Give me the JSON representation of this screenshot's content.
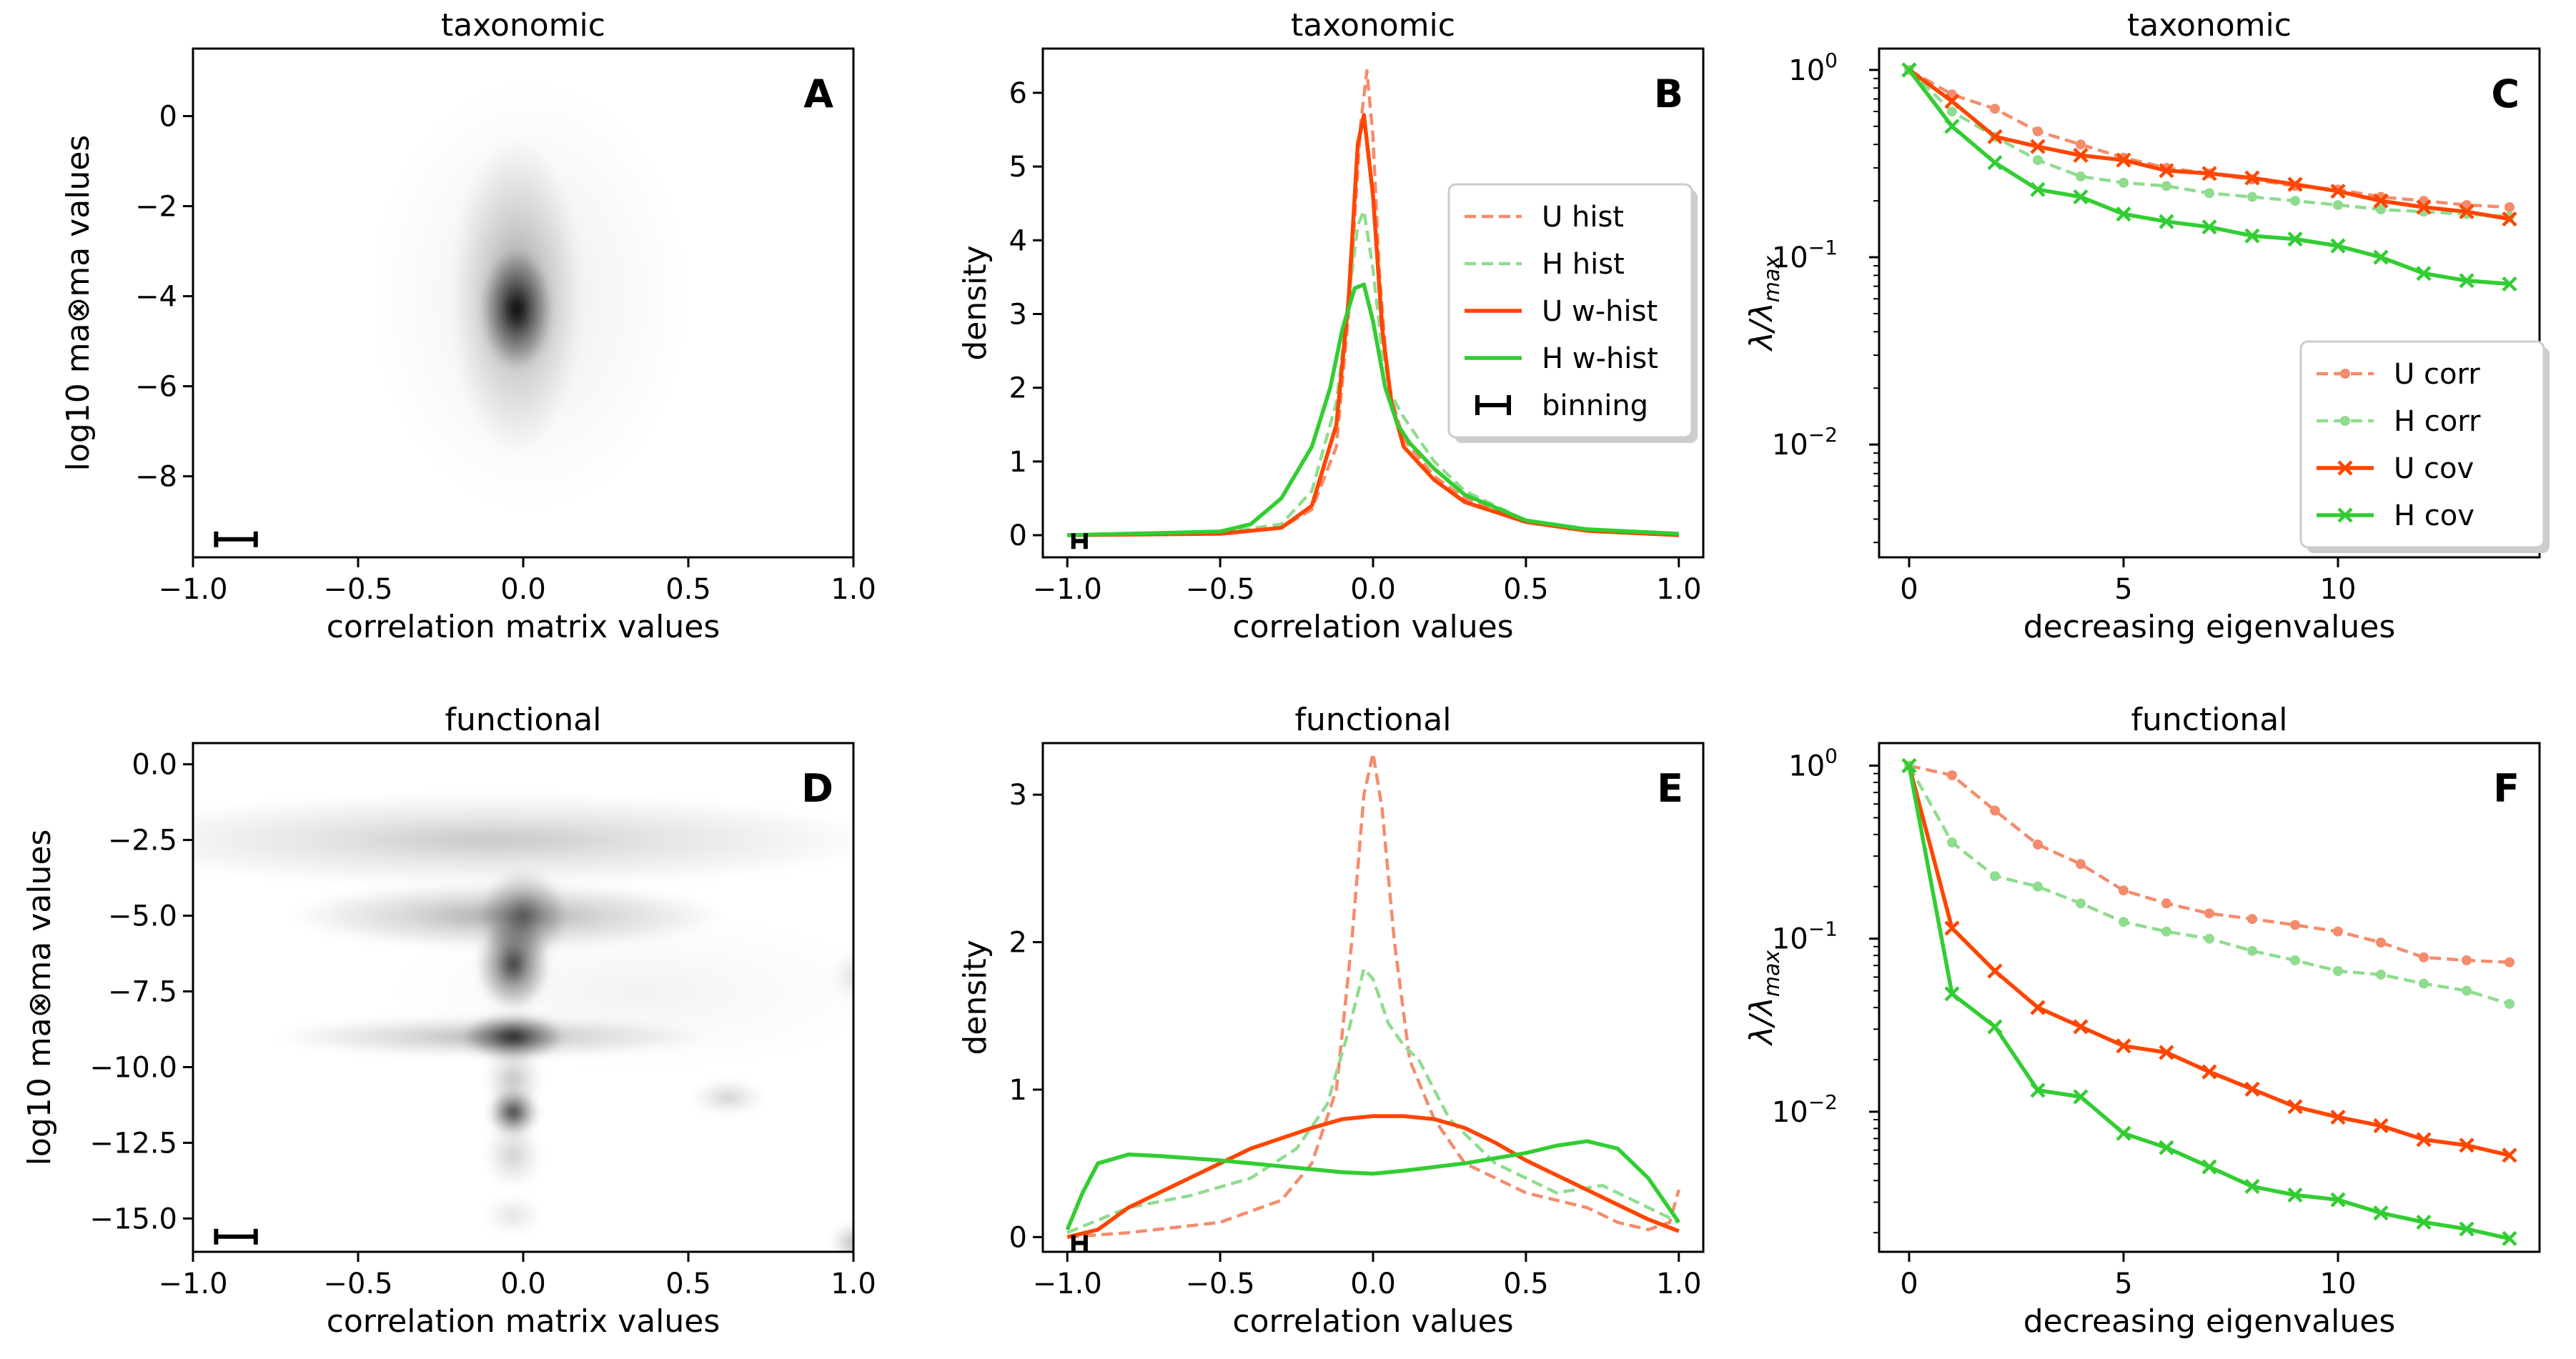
{
  "colors": {
    "U": "#ff4500",
    "H": "#32cd32",
    "U_light": "#f48c6c",
    "H_light": "#8fdc8f",
    "axis": "#000000"
  },
  "chart_data": [
    {
      "id": "A",
      "type": "heatmap",
      "letter": "A",
      "title": "taxonomic",
      "xlabel": "correlation matrix values",
      "ylabel": "log10 ma⊗ma values",
      "xlim": [
        -1.0,
        1.0
      ],
      "ylim": [
        -9.8,
        1.5
      ],
      "xticks": [
        -1.0,
        -0.5,
        0.0,
        0.5,
        1.0
      ],
      "xticklabels": [
        "−1.0",
        "−0.5",
        "0.0",
        "0.5",
        "1.0"
      ],
      "yticks": [
        -8,
        -6,
        -4,
        -2,
        0
      ],
      "yticklabels": [
        "−8",
        "−6",
        "−4",
        "−2",
        "0"
      ],
      "blobs": [
        {
          "x": -0.02,
          "y": -4.3,
          "sx": 0.05,
          "sy": 0.6,
          "w": 1.0
        },
        {
          "x": -0.02,
          "y": -4.0,
          "sx": 0.09,
          "sy": 1.6,
          "w": 0.35
        },
        {
          "x": 0.02,
          "y": -4.0,
          "sx": 0.22,
          "sy": 2.2,
          "w": 0.08
        }
      ],
      "binning": {
        "x": -0.87,
        "y": -9.4,
        "halfwidth": 0.06
      }
    },
    {
      "id": "B",
      "type": "line",
      "letter": "B",
      "title": "taxonomic",
      "xlabel": "correlation values",
      "ylabel": "density",
      "xlim": [
        -1.08,
        1.08
      ],
      "ylim": [
        -0.3,
        6.6
      ],
      "xticks": [
        -1.0,
        -0.5,
        0.0,
        0.5,
        1.0
      ],
      "xticklabels": [
        "−1.0",
        "−0.5",
        "0.0",
        "0.5",
        "1.0"
      ],
      "yticks": [
        0,
        1,
        2,
        3,
        4,
        5,
        6
      ],
      "yticklabels": [
        "0",
        "1",
        "2",
        "3",
        "4",
        "5",
        "6"
      ],
      "series": [
        {
          "name": "U hist",
          "color": "U_light",
          "style": "dashed",
          "x": [
            -1.0,
            -0.5,
            -0.3,
            -0.2,
            -0.12,
            -0.08,
            -0.04,
            -0.02,
            0.0,
            0.02,
            0.05,
            0.1,
            0.2,
            0.3,
            0.5,
            0.7,
            1.0
          ],
          "y": [
            0,
            0.02,
            0.1,
            0.35,
            1.2,
            3.0,
            5.6,
            6.3,
            5.4,
            3.6,
            2.0,
            1.3,
            0.8,
            0.5,
            0.2,
            0.06,
            0
          ]
        },
        {
          "name": "H hist",
          "color": "H_light",
          "style": "dashed",
          "x": [
            -1.0,
            -0.5,
            -0.3,
            -0.2,
            -0.12,
            -0.08,
            -0.05,
            -0.03,
            0.0,
            0.03,
            0.06,
            0.1,
            0.2,
            0.3,
            0.5,
            0.7,
            1.0
          ],
          "y": [
            0,
            0.03,
            0.15,
            0.6,
            1.8,
            3.2,
            4.2,
            4.4,
            3.6,
            2.5,
            1.9,
            1.6,
            1.0,
            0.6,
            0.2,
            0.06,
            0
          ]
        },
        {
          "name": "U w-hist",
          "color": "U",
          "style": "solid",
          "x": [
            -1.0,
            -0.5,
            -0.3,
            -0.2,
            -0.12,
            -0.08,
            -0.05,
            -0.03,
            0.0,
            0.03,
            0.06,
            0.1,
            0.2,
            0.3,
            0.5,
            0.7,
            1.0
          ],
          "y": [
            0,
            0.02,
            0.1,
            0.4,
            1.5,
            3.2,
            5.3,
            5.7,
            4.6,
            2.8,
            1.8,
            1.2,
            0.75,
            0.45,
            0.18,
            0.06,
            0
          ]
        },
        {
          "name": "H w-hist",
          "color": "H",
          "style": "solid",
          "x": [
            -1.0,
            -0.5,
            -0.4,
            -0.3,
            -0.2,
            -0.14,
            -0.1,
            -0.06,
            -0.03,
            0.0,
            0.04,
            0.08,
            0.12,
            0.2,
            0.3,
            0.5,
            0.7,
            1.0
          ],
          "y": [
            0,
            0.05,
            0.15,
            0.5,
            1.2,
            2.0,
            2.8,
            3.35,
            3.4,
            2.9,
            2.0,
            1.5,
            1.25,
            0.9,
            0.55,
            0.2,
            0.08,
            0.02
          ]
        }
      ],
      "legend": {
        "entries": [
          "U hist",
          "H hist",
          "U w-hist",
          "H w-hist",
          "binning"
        ],
        "placement": "right"
      },
      "binning": {
        "x": -0.96,
        "y": -0.08,
        "halfwidth": 0.02
      }
    },
    {
      "id": "C",
      "type": "line",
      "letter": "C",
      "title": "taxonomic",
      "xlabel": "decreasing eigenvalues",
      "ylabel": "λ/λ",
      "ylabel_sub": "max",
      "yscale": "log",
      "xlim": [
        -0.7,
        14.7
      ],
      "ylim": [
        0.0025,
        1.3
      ],
      "xticks": [
        0,
        5,
        10
      ],
      "xticklabels": [
        "0",
        "5",
        "10"
      ],
      "yticks": [
        1,
        0.1,
        0.01
      ],
      "yticklabels": [
        "10",
        "10",
        "10"
      ],
      "ytickexps": [
        "0",
        "−1",
        "−2"
      ],
      "x": [
        0,
        1,
        2,
        3,
        4,
        5,
        6,
        7,
        8,
        9,
        10,
        11,
        12,
        13,
        14
      ],
      "series": [
        {
          "name": "U corr",
          "color": "U_light",
          "style": "dashed",
          "marker": "dot",
          "values": [
            1.0,
            0.74,
            0.62,
            0.47,
            0.4,
            0.34,
            0.3,
            0.28,
            0.26,
            0.24,
            0.23,
            0.21,
            0.2,
            0.19,
            0.185
          ]
        },
        {
          "name": "H corr",
          "color": "H_light",
          "style": "dashed",
          "marker": "dot",
          "values": [
            1.0,
            0.6,
            0.44,
            0.33,
            0.27,
            0.25,
            0.24,
            0.22,
            0.21,
            0.2,
            0.19,
            0.18,
            0.175,
            0.17,
            0.165
          ]
        },
        {
          "name": "U cov",
          "color": "U",
          "style": "solid",
          "marker": "x",
          "values": [
            1.0,
            0.68,
            0.44,
            0.39,
            0.35,
            0.33,
            0.29,
            0.28,
            0.265,
            0.245,
            0.225,
            0.2,
            0.185,
            0.175,
            0.16
          ]
        },
        {
          "name": "H cov",
          "color": "H",
          "style": "solid",
          "marker": "x",
          "values": [
            1.0,
            0.5,
            0.32,
            0.23,
            0.21,
            0.17,
            0.155,
            0.145,
            0.13,
            0.125,
            0.115,
            0.1,
            0.082,
            0.075,
            0.072
          ]
        }
      ],
      "legend": {
        "entries": [
          "U corr",
          "H corr",
          "U cov",
          "H cov"
        ],
        "placement": "lower-right"
      }
    },
    {
      "id": "D",
      "type": "heatmap",
      "letter": "D",
      "title": "functional",
      "xlabel": "correlation matrix values",
      "ylabel": "log10 ma⊗ma values",
      "xlim": [
        -1.0,
        1.0
      ],
      "ylim": [
        -16.1,
        0.7
      ],
      "xticks": [
        -1.0,
        -0.5,
        0.0,
        0.5,
        1.0
      ],
      "xticklabels": [
        "−1.0",
        "−0.5",
        "0.0",
        "0.5",
        "1.0"
      ],
      "yticks": [
        -15,
        -12.5,
        -10,
        -7.5,
        -5,
        -2.5,
        0
      ],
      "yticklabels": [
        "−15.0",
        "−12.5",
        "−10.0",
        "−7.5",
        "−5.0",
        "−2.5",
        "0.0"
      ],
      "blobs": [
        {
          "x": -0.1,
          "y": -2.5,
          "sx": 0.55,
          "sy": 0.7,
          "w": 0.22
        },
        {
          "x": -0.05,
          "y": -5.0,
          "sx": 0.3,
          "sy": 0.5,
          "w": 0.35
        },
        {
          "x": 0.0,
          "y": -5.0,
          "sx": 0.06,
          "sy": 0.7,
          "w": 0.55
        },
        {
          "x": -0.03,
          "y": -6.6,
          "sx": 0.05,
          "sy": 0.7,
          "w": 0.8
        },
        {
          "x": -0.03,
          "y": -9.0,
          "sx": 0.07,
          "sy": 0.35,
          "w": 0.9
        },
        {
          "x": -0.1,
          "y": -9.0,
          "sx": 0.3,
          "sy": 0.3,
          "w": 0.3
        },
        {
          "x": -0.03,
          "y": -11.5,
          "sx": 0.035,
          "sy": 0.35,
          "w": 0.85
        },
        {
          "x": -0.03,
          "y": -10.4,
          "sx": 0.04,
          "sy": 0.5,
          "w": 0.25
        },
        {
          "x": -0.03,
          "y": -12.9,
          "sx": 0.04,
          "sy": 0.5,
          "w": 0.2
        },
        {
          "x": -0.03,
          "y": -14.9,
          "sx": 0.04,
          "sy": 0.3,
          "w": 0.12
        },
        {
          "x": 0.62,
          "y": -11.0,
          "sx": 0.05,
          "sy": 0.25,
          "w": 0.2
        },
        {
          "x": 1.0,
          "y": -7.0,
          "sx": 0.03,
          "sy": 0.4,
          "w": 0.12
        },
        {
          "x": 1.0,
          "y": -15.8,
          "sx": 0.03,
          "sy": 0.3,
          "w": 0.3
        },
        {
          "x": 0.35,
          "y": -7.5,
          "sx": 0.35,
          "sy": 1.2,
          "w": 0.05
        }
      ],
      "binning": {
        "x": -0.87,
        "y": -15.6,
        "halfwidth": 0.06
      }
    },
    {
      "id": "E",
      "type": "line",
      "letter": "E",
      "title": "functional",
      "xlabel": "correlation values",
      "ylabel": "density",
      "xlim": [
        -1.08,
        1.08
      ],
      "ylim": [
        -0.1,
        3.35
      ],
      "xticks": [
        -1.0,
        -0.5,
        0.0,
        0.5,
        1.0
      ],
      "xticklabels": [
        "−1.0",
        "−0.5",
        "0.0",
        "0.5",
        "1.0"
      ],
      "yticks": [
        0,
        1,
        2,
        3
      ],
      "yticklabels": [
        "0",
        "1",
        "2",
        "3"
      ],
      "series": [
        {
          "name": "U hist",
          "color": "U_light",
          "style": "dashed",
          "x": [
            -1.0,
            -0.8,
            -0.5,
            -0.3,
            -0.2,
            -0.12,
            -0.07,
            -0.03,
            0.0,
            0.03,
            0.07,
            0.12,
            0.2,
            0.3,
            0.5,
            0.6,
            0.7,
            0.8,
            0.9,
            0.97,
            1.0
          ],
          "y": [
            0,
            0.03,
            0.1,
            0.25,
            0.5,
            1.0,
            2.0,
            3.0,
            3.28,
            2.9,
            2.0,
            1.2,
            0.8,
            0.5,
            0.3,
            0.25,
            0.2,
            0.1,
            0.05,
            0.1,
            0.32
          ]
        },
        {
          "name": "H hist",
          "color": "H_light",
          "style": "dashed",
          "x": [
            -1.0,
            -0.8,
            -0.6,
            -0.4,
            -0.25,
            -0.15,
            -0.08,
            -0.03,
            0.0,
            0.05,
            0.1,
            0.15,
            0.25,
            0.4,
            0.6,
            0.75,
            0.9,
            1.0
          ],
          "y": [
            0.03,
            0.2,
            0.28,
            0.4,
            0.6,
            0.9,
            1.4,
            1.82,
            1.75,
            1.45,
            1.3,
            1.2,
            0.8,
            0.5,
            0.3,
            0.35,
            0.2,
            0.1
          ]
        },
        {
          "name": "U w-hist",
          "color": "U",
          "style": "solid",
          "x": [
            -1.0,
            -0.9,
            -0.8,
            -0.6,
            -0.4,
            -0.2,
            -0.1,
            0.0,
            0.1,
            0.2,
            0.3,
            0.4,
            0.5,
            0.6,
            0.7,
            0.8,
            0.9,
            1.0
          ],
          "y": [
            0.0,
            0.05,
            0.2,
            0.4,
            0.6,
            0.74,
            0.8,
            0.82,
            0.82,
            0.8,
            0.74,
            0.64,
            0.52,
            0.42,
            0.32,
            0.22,
            0.12,
            0.04
          ]
        },
        {
          "name": "H w-hist",
          "color": "H",
          "style": "solid",
          "x": [
            -1.0,
            -0.95,
            -0.9,
            -0.8,
            -0.7,
            -0.5,
            -0.3,
            -0.1,
            0.0,
            0.1,
            0.3,
            0.5,
            0.6,
            0.7,
            0.8,
            0.9,
            0.95,
            1.0
          ],
          "y": [
            0.05,
            0.3,
            0.5,
            0.56,
            0.55,
            0.52,
            0.48,
            0.44,
            0.43,
            0.45,
            0.5,
            0.57,
            0.62,
            0.65,
            0.6,
            0.4,
            0.25,
            0.1
          ]
        }
      ],
      "binning": {
        "x": -0.96,
        "y": -0.04,
        "halfwidth": 0.02
      }
    },
    {
      "id": "F",
      "type": "line",
      "letter": "F",
      "title": "functional",
      "xlabel": "decreasing eigenvalues",
      "ylabel": "λ/λ",
      "ylabel_sub": "max",
      "yscale": "log",
      "xlim": [
        -0.7,
        14.7
      ],
      "ylim": [
        0.00155,
        1.35
      ],
      "xticks": [
        0,
        5,
        10
      ],
      "xticklabels": [
        "0",
        "5",
        "10"
      ],
      "yticks": [
        1,
        0.1,
        0.01
      ],
      "yticklabels": [
        "10",
        "10",
        "10"
      ],
      "ytickexps": [
        "0",
        "−1",
        "−2"
      ],
      "x": [
        0,
        1,
        2,
        3,
        4,
        5,
        6,
        7,
        8,
        9,
        10,
        11,
        12,
        13,
        14
      ],
      "series": [
        {
          "name": "U corr",
          "color": "U_light",
          "style": "dashed",
          "marker": "dot",
          "values": [
            1.0,
            0.88,
            0.55,
            0.35,
            0.27,
            0.19,
            0.16,
            0.14,
            0.13,
            0.12,
            0.11,
            0.095,
            0.078,
            0.075,
            0.073
          ]
        },
        {
          "name": "H corr",
          "color": "H_light",
          "style": "dashed",
          "marker": "dot",
          "values": [
            1.0,
            0.36,
            0.23,
            0.2,
            0.16,
            0.125,
            0.11,
            0.1,
            0.085,
            0.075,
            0.065,
            0.062,
            0.055,
            0.05,
            0.042
          ]
        },
        {
          "name": "U cov",
          "color": "U",
          "style": "solid",
          "marker": "x",
          "values": [
            1.0,
            0.115,
            0.065,
            0.04,
            0.031,
            0.024,
            0.022,
            0.017,
            0.0135,
            0.0107,
            0.0093,
            0.0083,
            0.0069,
            0.0064,
            0.0056
          ]
        },
        {
          "name": "H cov",
          "color": "H",
          "style": "solid",
          "marker": "x",
          "values": [
            1.0,
            0.048,
            0.031,
            0.0133,
            0.0122,
            0.0075,
            0.0062,
            0.0048,
            0.0037,
            0.0033,
            0.0031,
            0.0026,
            0.0023,
            0.0021,
            0.00185
          ]
        }
      ]
    }
  ]
}
